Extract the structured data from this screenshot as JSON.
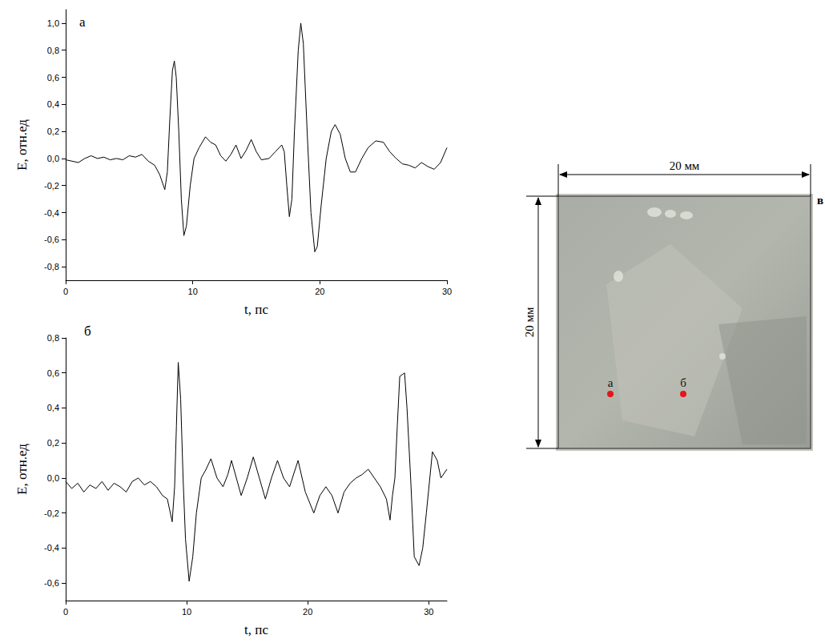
{
  "chart_data": [
    {
      "type": "line",
      "title": "а",
      "x_label": "t, пс",
      "y_label": "E, отн.ед",
      "color": "#000000",
      "grid": false,
      "xlim": [
        0,
        30
      ],
      "xticks": [
        0,
        10,
        20,
        30
      ],
      "ylim": [
        -0.9,
        1.1
      ],
      "yticks": [
        {
          "value": -0.8,
          "label": "-0,8"
        },
        {
          "value": -0.6,
          "label": "-0,6"
        },
        {
          "value": -0.4,
          "label": "-0,4"
        },
        {
          "value": -0.2,
          "label": "-0,2"
        },
        {
          "value": 0,
          "label": "0,0"
        },
        {
          "value": 0.2,
          "label": "0,2"
        },
        {
          "value": 0.4,
          "label": "0,4"
        },
        {
          "value": 0.6,
          "label": "0,6"
        },
        {
          "value": 0.8,
          "label": "0,8"
        },
        {
          "value": 1.0,
          "label": "1,0"
        }
      ],
      "x": [
        0,
        0.5,
        1,
        1.5,
        2,
        2.5,
        3,
        3.5,
        4,
        4.5,
        5,
        5.5,
        6,
        6.5,
        7,
        7.4,
        7.8,
        8.0,
        8.2,
        8.4,
        8.55,
        8.7,
        8.9,
        9.1,
        9.3,
        9.5,
        9.8,
        10.1,
        10.5,
        11,
        11.4,
        11.8,
        12.2,
        12.6,
        13,
        13.4,
        13.8,
        14.2,
        14.6,
        15,
        15.4,
        16,
        16.5,
        17,
        17.2,
        17.4,
        17.6,
        17.8,
        18.0,
        18.3,
        18.5,
        18.7,
        19.0,
        19.3,
        19.6,
        19.8,
        20.1,
        20.5,
        20.9,
        21.2,
        21.6,
        22.0,
        22.4,
        22.8,
        23.3,
        23.8,
        24.4,
        25,
        25.5,
        26,
        26.5,
        27,
        27.5,
        28,
        28.5,
        29,
        29.5,
        30
      ],
      "values": [
        -0.01,
        -0.02,
        -0.03,
        0.0,
        0.02,
        0.0,
        0.01,
        -0.01,
        0.0,
        -0.01,
        0.02,
        0.01,
        0.03,
        -0.02,
        -0.05,
        -0.12,
        -0.23,
        -0.1,
        0.3,
        0.65,
        0.72,
        0.6,
        0.2,
        -0.3,
        -0.57,
        -0.5,
        -0.2,
        0.0,
        0.08,
        0.16,
        0.12,
        0.1,
        0.02,
        -0.02,
        0.03,
        0.1,
        0.0,
        0.06,
        0.14,
        0.05,
        -0.01,
        0.0,
        0.05,
        0.1,
        0.05,
        -0.2,
        -0.43,
        -0.3,
        0.2,
        0.8,
        1.0,
        0.85,
        0.2,
        -0.4,
        -0.69,
        -0.65,
        -0.35,
        0.0,
        0.2,
        0.25,
        0.18,
        0.0,
        -0.1,
        -0.1,
        0.0,
        0.08,
        0.13,
        0.12,
        0.05,
        0.0,
        -0.04,
        -0.05,
        -0.07,
        -0.03,
        -0.06,
        -0.08,
        -0.03,
        0.08
      ]
    },
    {
      "type": "line",
      "title": "б",
      "x_label": "t, пс",
      "y_label": "E, отн.ед",
      "color": "#000000",
      "grid": false,
      "xlim": [
        0,
        31.5
      ],
      "xticks": [
        0,
        10,
        20,
        30
      ],
      "ylim": [
        -0.7,
        0.8
      ],
      "yticks": [
        {
          "value": -0.6,
          "label": "-0,6"
        },
        {
          "value": -0.4,
          "label": "-0,4"
        },
        {
          "value": -0.2,
          "label": "-0,2"
        },
        {
          "value": 0,
          "label": "0,0"
        },
        {
          "value": 0.2,
          "label": "0,2"
        },
        {
          "value": 0.4,
          "label": "0,4"
        },
        {
          "value": 0.6,
          "label": "0,6"
        },
        {
          "value": 0.8,
          "label": "0,8"
        }
      ],
      "x": [
        0,
        0.5,
        1,
        1.5,
        2,
        2.5,
        3,
        3.5,
        4,
        4.5,
        5,
        5.5,
        6,
        6.5,
        7,
        7.5,
        8,
        8.4,
        8.8,
        9.0,
        9.15,
        9.3,
        9.5,
        9.7,
        9.9,
        10.2,
        10.5,
        10.8,
        11.2,
        11.6,
        12,
        12.5,
        13,
        13.4,
        13.7,
        14.1,
        14.5,
        15,
        15.5,
        16,
        16.5,
        17,
        17.5,
        18,
        18.5,
        19.2,
        19.8,
        20.5,
        21,
        21.5,
        22,
        22.5,
        23,
        23.5,
        24,
        24.5,
        25,
        25.5,
        26,
        26.5,
        26.8,
        27.0,
        27.2,
        27.4,
        27.6,
        28.0,
        28.2,
        28.5,
        28.8,
        29.2,
        29.5,
        29.8,
        30.3,
        30.7,
        31,
        31.5
      ],
      "values": [
        -0.02,
        -0.06,
        -0.03,
        -0.08,
        -0.04,
        -0.06,
        -0.02,
        -0.07,
        -0.03,
        -0.05,
        -0.08,
        -0.02,
        0.0,
        -0.04,
        -0.02,
        -0.05,
        -0.1,
        -0.12,
        -0.25,
        -0.05,
        0.3,
        0.66,
        0.45,
        0.0,
        -0.35,
        -0.59,
        -0.45,
        -0.2,
        0.0,
        0.05,
        0.11,
        0.0,
        -0.05,
        0.02,
        0.1,
        0.0,
        -0.1,
        0.0,
        0.12,
        0.0,
        -0.12,
        0.0,
        0.1,
        0.0,
        -0.05,
        0.1,
        -0.08,
        -0.2,
        -0.1,
        -0.05,
        -0.1,
        -0.2,
        -0.08,
        -0.03,
        0.0,
        0.02,
        0.05,
        0.0,
        -0.05,
        -0.12,
        -0.24,
        -0.1,
        0.0,
        0.3,
        0.58,
        0.6,
        0.4,
        0.0,
        -0.45,
        -0.5,
        -0.4,
        -0.2,
        0.15,
        0.1,
        0.0,
        0.05
      ]
    }
  ],
  "image_panel": {
    "label": "в",
    "width_label": "20 мм",
    "height_label": "20 мм",
    "points": [
      {
        "label": "а",
        "color": "#e8141b"
      },
      {
        "label": "б",
        "color": "#e8141b"
      }
    ]
  }
}
